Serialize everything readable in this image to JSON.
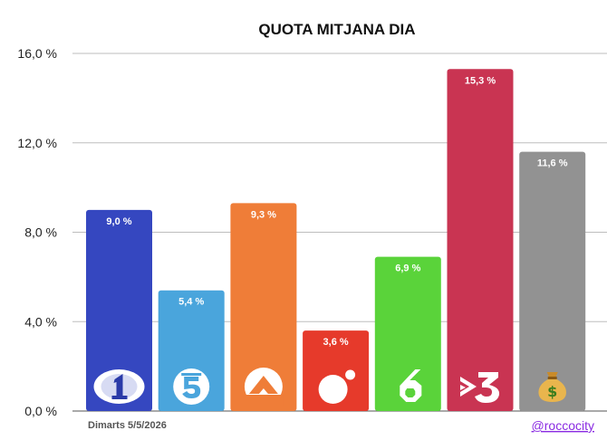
{
  "chart_data": {
    "type": "bar",
    "title": "QUOTA MITJANA DIA",
    "xlabel": "",
    "ylabel": "",
    "ylim": [
      0,
      16
    ],
    "yticks": [
      "0,0 %",
      "4,0 %",
      "8,0 %",
      "12,0 %",
      "16,0 %"
    ],
    "ytick_values": [
      0,
      4,
      8,
      12,
      16
    ],
    "grid": true,
    "categories": [
      "La 1",
      "Telecinco",
      "Antena 3",
      "Cuatro",
      "La Sexta",
      "TV3",
      "Others"
    ],
    "values": [
      9.0,
      5.4,
      9.3,
      3.6,
      6.9,
      15.3,
      11.6
    ],
    "value_labels": [
      "9,0 %",
      "5,4 %",
      "9,3 %",
      "3,6 %",
      "6,9 %",
      "15,3 %",
      "11,6 %"
    ],
    "colors": [
      "#3547c0",
      "#4aa5dc",
      "#ef7d38",
      "#e63a2b",
      "#5ad33a",
      "#c93452",
      "#929292"
    ],
    "icons": [
      "la1-logo-icon",
      "telecinco-logo-icon",
      "antena3-logo-icon",
      "cuatro-logo-icon",
      "lasexta-logo-icon",
      "tv3-logo-icon",
      "money-bag-icon"
    ]
  },
  "footer": {
    "date": "Dimarts 5/5/2026",
    "handle": "@roccocity"
  }
}
